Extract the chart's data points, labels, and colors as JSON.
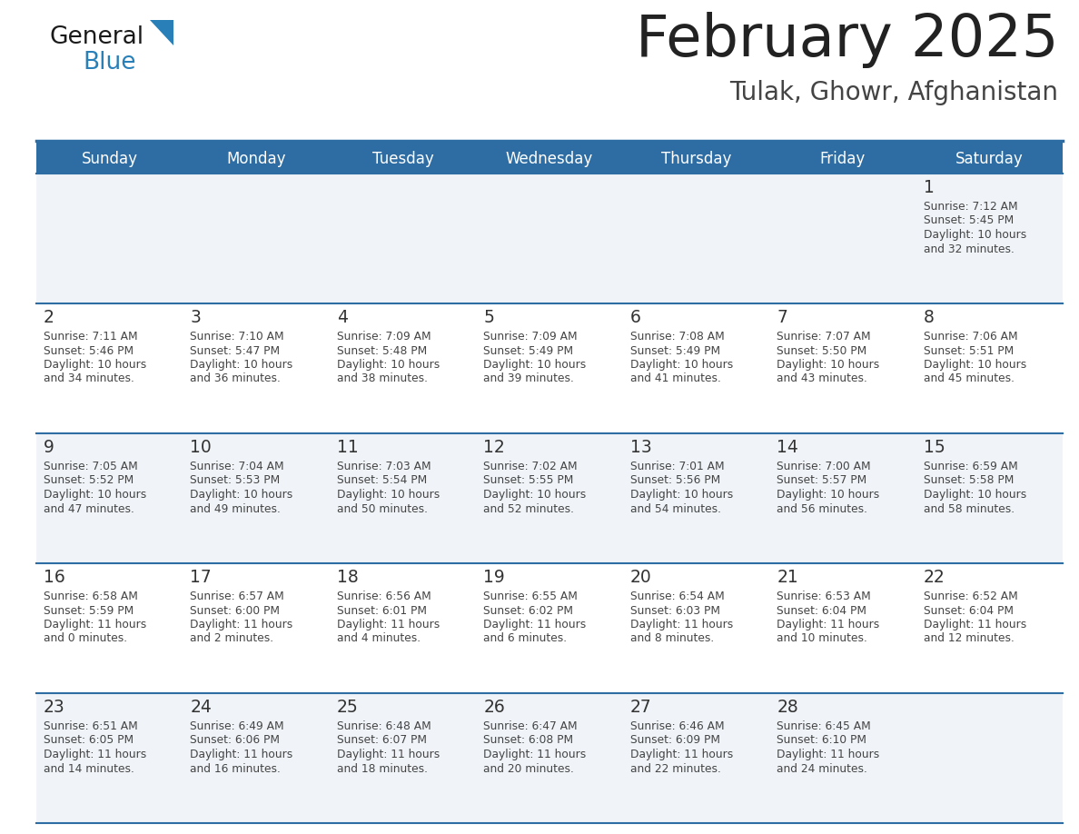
{
  "title": "February 2025",
  "subtitle": "Tulak, Ghowr, Afghanistan",
  "days_of_week": [
    "Sunday",
    "Monday",
    "Tuesday",
    "Wednesday",
    "Thursday",
    "Friday",
    "Saturday"
  ],
  "header_bg": "#2e6da4",
  "header_text_color": "#ffffff",
  "row_bg_light": "#f0f4f8",
  "row_bg_white": "#ffffff",
  "separator_color": "#2e6da4",
  "cell_text_color": "#444444",
  "day_num_color": "#333333",
  "title_color": "#222222",
  "subtitle_color": "#444444",
  "calendar_data": [
    [
      null,
      null,
      null,
      null,
      null,
      null,
      {
        "day": 1,
        "sunrise": "7:12 AM",
        "sunset": "5:45 PM",
        "daylight": "10 hours and 32 minutes."
      }
    ],
    [
      {
        "day": 2,
        "sunrise": "7:11 AM",
        "sunset": "5:46 PM",
        "daylight": "10 hours and 34 minutes."
      },
      {
        "day": 3,
        "sunrise": "7:10 AM",
        "sunset": "5:47 PM",
        "daylight": "10 hours and 36 minutes."
      },
      {
        "day": 4,
        "sunrise": "7:09 AM",
        "sunset": "5:48 PM",
        "daylight": "10 hours and 38 minutes."
      },
      {
        "day": 5,
        "sunrise": "7:09 AM",
        "sunset": "5:49 PM",
        "daylight": "10 hours and 39 minutes."
      },
      {
        "day": 6,
        "sunrise": "7:08 AM",
        "sunset": "5:49 PM",
        "daylight": "10 hours and 41 minutes."
      },
      {
        "day": 7,
        "sunrise": "7:07 AM",
        "sunset": "5:50 PM",
        "daylight": "10 hours and 43 minutes."
      },
      {
        "day": 8,
        "sunrise": "7:06 AM",
        "sunset": "5:51 PM",
        "daylight": "10 hours and 45 minutes."
      }
    ],
    [
      {
        "day": 9,
        "sunrise": "7:05 AM",
        "sunset": "5:52 PM",
        "daylight": "10 hours and 47 minutes."
      },
      {
        "day": 10,
        "sunrise": "7:04 AM",
        "sunset": "5:53 PM",
        "daylight": "10 hours and 49 minutes."
      },
      {
        "day": 11,
        "sunrise": "7:03 AM",
        "sunset": "5:54 PM",
        "daylight": "10 hours and 50 minutes."
      },
      {
        "day": 12,
        "sunrise": "7:02 AM",
        "sunset": "5:55 PM",
        "daylight": "10 hours and 52 minutes."
      },
      {
        "day": 13,
        "sunrise": "7:01 AM",
        "sunset": "5:56 PM",
        "daylight": "10 hours and 54 minutes."
      },
      {
        "day": 14,
        "sunrise": "7:00 AM",
        "sunset": "5:57 PM",
        "daylight": "10 hours and 56 minutes."
      },
      {
        "day": 15,
        "sunrise": "6:59 AM",
        "sunset": "5:58 PM",
        "daylight": "10 hours and 58 minutes."
      }
    ],
    [
      {
        "day": 16,
        "sunrise": "6:58 AM",
        "sunset": "5:59 PM",
        "daylight": "11 hours and 0 minutes."
      },
      {
        "day": 17,
        "sunrise": "6:57 AM",
        "sunset": "6:00 PM",
        "daylight": "11 hours and 2 minutes."
      },
      {
        "day": 18,
        "sunrise": "6:56 AM",
        "sunset": "6:01 PM",
        "daylight": "11 hours and 4 minutes."
      },
      {
        "day": 19,
        "sunrise": "6:55 AM",
        "sunset": "6:02 PM",
        "daylight": "11 hours and 6 minutes."
      },
      {
        "day": 20,
        "sunrise": "6:54 AM",
        "sunset": "6:03 PM",
        "daylight": "11 hours and 8 minutes."
      },
      {
        "day": 21,
        "sunrise": "6:53 AM",
        "sunset": "6:04 PM",
        "daylight": "11 hours and 10 minutes."
      },
      {
        "day": 22,
        "sunrise": "6:52 AM",
        "sunset": "6:04 PM",
        "daylight": "11 hours and 12 minutes."
      }
    ],
    [
      {
        "day": 23,
        "sunrise": "6:51 AM",
        "sunset": "6:05 PM",
        "daylight": "11 hours and 14 minutes."
      },
      {
        "day": 24,
        "sunrise": "6:49 AM",
        "sunset": "6:06 PM",
        "daylight": "11 hours and 16 minutes."
      },
      {
        "day": 25,
        "sunrise": "6:48 AM",
        "sunset": "6:07 PM",
        "daylight": "11 hours and 18 minutes."
      },
      {
        "day": 26,
        "sunrise": "6:47 AM",
        "sunset": "6:08 PM",
        "daylight": "11 hours and 20 minutes."
      },
      {
        "day": 27,
        "sunrise": "6:46 AM",
        "sunset": "6:09 PM",
        "daylight": "11 hours and 22 minutes."
      },
      {
        "day": 28,
        "sunrise": "6:45 AM",
        "sunset": "6:10 PM",
        "daylight": "11 hours and 24 minutes."
      },
      null
    ]
  ],
  "logo_general_color": "#1a1a1a",
  "logo_blue_color": "#2980b9",
  "logo_triangle_color": "#2980b9"
}
